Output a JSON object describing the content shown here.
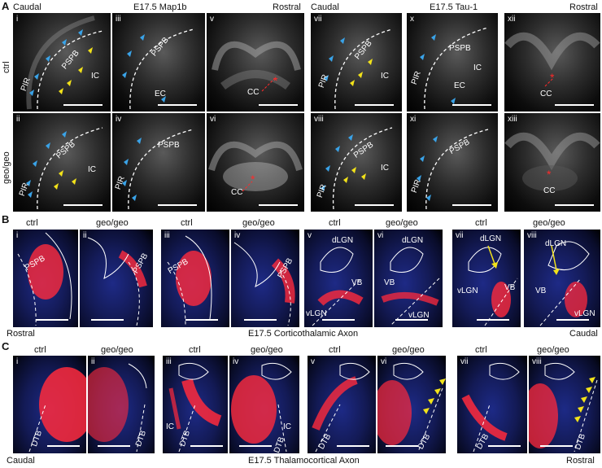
{
  "sectionA": {
    "letter": "A",
    "left": {
      "caudal": "Caudal",
      "title": "E17.5 Map1b",
      "rostral": "Rostral"
    },
    "right": {
      "caudal": "Caudal",
      "title": "E17.5 Tau-1",
      "rostral": "Rostral"
    },
    "rows": {
      "ctrl": "ctrl",
      "geo": "geo/geo"
    },
    "numerals": [
      "i",
      "ii",
      "iii",
      "iv",
      "v",
      "vi",
      "vii",
      "viii",
      "x",
      "xi",
      "xii",
      "xiii"
    ],
    "labels": {
      "pir": "PIR",
      "pspb": "PSPB",
      "ic": "IC",
      "ec": "EC",
      "cc": "CC"
    }
  },
  "sectionB": {
    "letter": "B",
    "cols": [
      "ctrl",
      "geo/geo",
      "ctrl",
      "geo/geo",
      "ctrl",
      "geo/geo",
      "ctrl",
      "geo/geo"
    ],
    "numerals": [
      "i",
      "ii",
      "iii",
      "iv",
      "v",
      "vi",
      "vii",
      "viii"
    ],
    "labels": {
      "pspb": "PSPB",
      "dlgn": "dLGN",
      "vlgn": "vLGN",
      "vb": "VB"
    },
    "footer": {
      "left": "Rostral",
      "center": "E17.5 Corticothalamic Axon",
      "right": "Caudal"
    }
  },
  "sectionC": {
    "letter": "C",
    "cols": [
      "ctrl",
      "geo/geo",
      "ctrl",
      "geo/geo",
      "ctrl",
      "geo/geo",
      "ctrl",
      "geo/geo"
    ],
    "numerals": [
      "i",
      "ii",
      "iii",
      "iv",
      "v",
      "vi",
      "vii",
      "viii"
    ],
    "labels": {
      "dtb": "DTB",
      "ic": "IC"
    },
    "footer": {
      "left": "Caudal",
      "center": "E17.5 Thalamocortical Axon",
      "right": "Rostral"
    }
  },
  "colors": {
    "blue_arrow": "#3aa3e8",
    "yellow_arrow": "#f2e21a",
    "red_marker": "#ff2a2a",
    "axon_red": "#ff2a3c",
    "tissue_blue": "#1e2a86"
  }
}
